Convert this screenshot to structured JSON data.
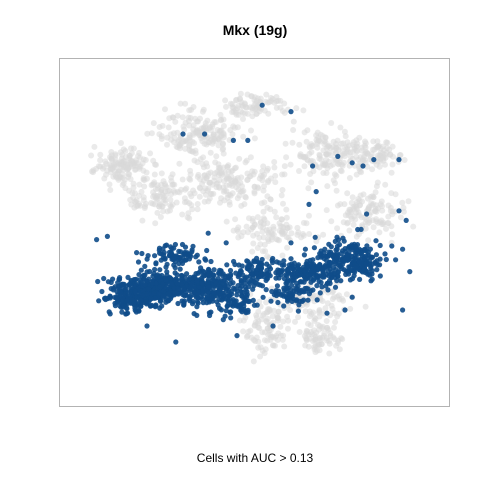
{
  "chart_data": {
    "type": "scatter",
    "title": "Mkx (19g)",
    "xlabel": "Cells with AUC > 0.13",
    "ylabel": "",
    "xlim": [
      0,
      100
    ],
    "ylim": [
      0,
      100
    ],
    "grid": false,
    "colors": {
      "background_cells": "#d9d9d9",
      "positive_cells": "#0f4c8a"
    },
    "series": [
      {
        "role": "all cells",
        "color": "#d9d9d9",
        "clusters": [
          {
            "center": [
              50,
              89
            ],
            "spread": [
              7,
              3
            ],
            "count": 80
          },
          {
            "center": [
              35,
              80
            ],
            "spread": [
              10,
              6
            ],
            "count": 160
          },
          {
            "center": [
              70,
              74
            ],
            "spread": [
              9,
              7
            ],
            "count": 150
          },
          {
            "center": [
              83,
              74
            ],
            "spread": [
              5,
              4
            ],
            "count": 80
          },
          {
            "center": [
              13,
              70
            ],
            "spread": [
              7,
              5
            ],
            "count": 130
          },
          {
            "center": [
              43,
              65
            ],
            "spread": [
              11,
              6
            ],
            "count": 170
          },
          {
            "center": [
              25,
              60
            ],
            "spread": [
              8,
              5
            ],
            "count": 110
          },
          {
            "center": [
              82,
              55
            ],
            "spread": [
              8,
              6
            ],
            "count": 120
          },
          {
            "center": [
              55,
              50
            ],
            "spread": [
              8,
              5
            ],
            "count": 100
          },
          {
            "center": [
              52,
              20
            ],
            "spread": [
              6,
              7
            ],
            "count": 90
          },
          {
            "center": [
              68,
              17
            ],
            "spread": [
              5,
              5
            ],
            "count": 70
          },
          {
            "center": [
              66,
              28
            ],
            "spread": [
              9,
              5
            ],
            "count": 90
          }
        ]
      },
      {
        "role": "cells with AUC > threshold",
        "color": "#0f4c8a",
        "clusters": [
          {
            "center": [
              22,
              32
            ],
            "spread": [
              9,
              4
            ],
            "count": 340
          },
          {
            "center": [
              38,
              32
            ],
            "spread": [
              8,
              5
            ],
            "count": 260
          },
          {
            "center": [
              15,
              28
            ],
            "spread": [
              6,
              3
            ],
            "count": 120
          },
          {
            "center": [
              28,
              42
            ],
            "spread": [
              6,
              3
            ],
            "count": 80
          },
          {
            "center": [
              50,
              37
            ],
            "spread": [
              5,
              4
            ],
            "count": 90
          },
          {
            "center": [
              65,
              37
            ],
            "spread": [
              9,
              4
            ],
            "count": 200
          },
          {
            "center": [
              76,
              42
            ],
            "spread": [
              7,
              4
            ],
            "count": 150
          },
          {
            "center": [
              80,
              38
            ],
            "spread": [
              4,
              3
            ],
            "count": 60
          },
          {
            "center": [
              60,
              30
            ],
            "spread": [
              5,
              3
            ],
            "count": 60
          },
          {
            "center": [
              45,
              26
            ],
            "spread": [
              4,
              3
            ],
            "count": 40
          }
        ],
        "points": [
          [
            52,
            89
          ],
          [
            60,
            87
          ],
          [
            30,
            80
          ],
          [
            36,
            80
          ],
          [
            44,
            78
          ],
          [
            48,
            78
          ],
          [
            73,
            73
          ],
          [
            77,
            71
          ],
          [
            80,
            70
          ],
          [
            83,
            72
          ],
          [
            90,
            72
          ],
          [
            66,
            70
          ],
          [
            67,
            62
          ],
          [
            65,
            58
          ],
          [
            90,
            56
          ],
          [
            92,
            53
          ],
          [
            81,
            55
          ],
          [
            6,
            47
          ],
          [
            9,
            48
          ],
          [
            37,
            49
          ],
          [
            42,
            46
          ],
          [
            60,
            46
          ],
          [
            64,
            44
          ],
          [
            88,
            45
          ],
          [
            91,
            44
          ],
          [
            13,
            33
          ],
          [
            93,
            37
          ],
          [
            91,
            25
          ],
          [
            55,
            20
          ],
          [
            75,
            25
          ],
          [
            70,
            24
          ],
          [
            77,
            29
          ],
          [
            20,
            20
          ],
          [
            28,
            15
          ],
          [
            45,
            17
          ]
        ]
      }
    ]
  }
}
